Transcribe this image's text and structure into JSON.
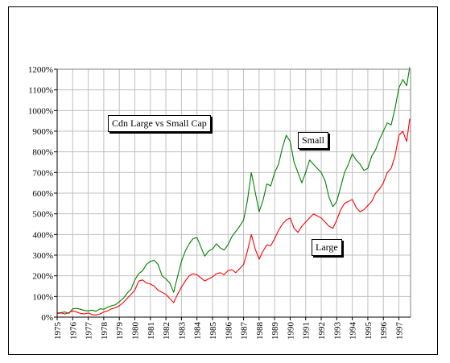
{
  "chart_data": {
    "type": "line",
    "title": "Cdn Large vs Small Cap",
    "xlabel": "",
    "ylabel": "",
    "xlim": [
      1975,
      1997.75
    ],
    "ylim": [
      0,
      1200
    ],
    "ytick_labels": [
      "0%",
      "100%",
      "200%",
      "300%",
      "400%",
      "500%",
      "600%",
      "700%",
      "800%",
      "900%",
      "1000%",
      "1100%",
      "1200%"
    ],
    "xtick_labels": [
      "1975",
      "1976",
      "1977",
      "1978",
      "1979",
      "1980",
      "1981",
      "1982",
      "1983",
      "1984",
      "1985",
      "1986",
      "1987",
      "1988",
      "1989",
      "1990",
      "1991",
      "1992",
      "1993",
      "1994",
      "1995",
      "1996",
      "1997"
    ],
    "grid": true,
    "legend": "none",
    "annotations": [
      {
        "text": "Small",
        "series": "Small"
      },
      {
        "text": "Large",
        "series": "Large"
      }
    ],
    "series": [
      {
        "name": "Small",
        "color": "#008000",
        "points": [
          [
            1975.0,
            20
          ],
          [
            1975.25,
            22
          ],
          [
            1975.5,
            25
          ],
          [
            1975.75,
            18
          ],
          [
            1976.0,
            40
          ],
          [
            1976.25,
            42
          ],
          [
            1976.5,
            38
          ],
          [
            1976.75,
            32
          ],
          [
            1977.0,
            30
          ],
          [
            1977.25,
            34
          ],
          [
            1977.5,
            28
          ],
          [
            1977.75,
            40
          ],
          [
            1978.0,
            38
          ],
          [
            1978.25,
            48
          ],
          [
            1978.5,
            55
          ],
          [
            1978.75,
            60
          ],
          [
            1979.0,
            75
          ],
          [
            1979.25,
            90
          ],
          [
            1979.5,
            115
          ],
          [
            1979.75,
            135
          ],
          [
            1980.0,
            180
          ],
          [
            1980.25,
            210
          ],
          [
            1980.5,
            225
          ],
          [
            1980.75,
            255
          ],
          [
            1981.0,
            270
          ],
          [
            1981.25,
            275
          ],
          [
            1981.5,
            255
          ],
          [
            1981.75,
            200
          ],
          [
            1982.0,
            185
          ],
          [
            1982.25,
            165
          ],
          [
            1982.5,
            120
          ],
          [
            1982.75,
            195
          ],
          [
            1983.0,
            270
          ],
          [
            1983.25,
            320
          ],
          [
            1983.5,
            355
          ],
          [
            1983.75,
            380
          ],
          [
            1984.0,
            385
          ],
          [
            1984.25,
            340
          ],
          [
            1984.5,
            295
          ],
          [
            1984.75,
            320
          ],
          [
            1985.0,
            330
          ],
          [
            1985.25,
            355
          ],
          [
            1985.5,
            335
          ],
          [
            1985.75,
            325
          ],
          [
            1986.0,
            350
          ],
          [
            1986.25,
            390
          ],
          [
            1986.5,
            415
          ],
          [
            1986.75,
            440
          ],
          [
            1987.0,
            470
          ],
          [
            1987.25,
            565
          ],
          [
            1987.5,
            700
          ],
          [
            1987.75,
            605
          ],
          [
            1988.0,
            510
          ],
          [
            1988.25,
            565
          ],
          [
            1988.5,
            645
          ],
          [
            1988.75,
            635
          ],
          [
            1989.0,
            700
          ],
          [
            1989.25,
            740
          ],
          [
            1989.5,
            820
          ],
          [
            1989.75,
            880
          ],
          [
            1990.0,
            850
          ],
          [
            1990.25,
            750
          ],
          [
            1990.5,
            700
          ],
          [
            1990.75,
            650
          ],
          [
            1991.0,
            700
          ],
          [
            1991.25,
            760
          ],
          [
            1991.5,
            740
          ],
          [
            1991.75,
            720
          ],
          [
            1992.0,
            700
          ],
          [
            1992.25,
            660
          ],
          [
            1992.5,
            580
          ],
          [
            1992.75,
            535
          ],
          [
            1993.0,
            560
          ],
          [
            1993.25,
            630
          ],
          [
            1993.5,
            700
          ],
          [
            1993.75,
            740
          ],
          [
            1994.0,
            790
          ],
          [
            1994.25,
            760
          ],
          [
            1994.5,
            740
          ],
          [
            1994.75,
            710
          ],
          [
            1995.0,
            720
          ],
          [
            1995.25,
            780
          ],
          [
            1995.5,
            810
          ],
          [
            1995.75,
            860
          ],
          [
            1996.0,
            900
          ],
          [
            1996.25,
            940
          ],
          [
            1996.5,
            930
          ],
          [
            1996.75,
            1010
          ],
          [
            1997.0,
            1110
          ],
          [
            1997.25,
            1150
          ],
          [
            1997.5,
            1120
          ],
          [
            1997.7,
            1210
          ]
        ]
      },
      {
        "name": "Large",
        "color": "#ff0000",
        "points": [
          [
            1975.0,
            18
          ],
          [
            1975.25,
            20
          ],
          [
            1975.5,
            15
          ],
          [
            1975.75,
            22
          ],
          [
            1976.0,
            30
          ],
          [
            1976.25,
            25
          ],
          [
            1976.5,
            18
          ],
          [
            1976.75,
            15
          ],
          [
            1977.0,
            20
          ],
          [
            1977.25,
            12
          ],
          [
            1977.5,
            10
          ],
          [
            1977.75,
            15
          ],
          [
            1978.0,
            25
          ],
          [
            1978.25,
            30
          ],
          [
            1978.5,
            40
          ],
          [
            1978.75,
            45
          ],
          [
            1979.0,
            55
          ],
          [
            1979.25,
            70
          ],
          [
            1979.5,
            90
          ],
          [
            1979.75,
            110
          ],
          [
            1980.0,
            130
          ],
          [
            1980.25,
            175
          ],
          [
            1980.5,
            180
          ],
          [
            1980.75,
            165
          ],
          [
            1981.0,
            160
          ],
          [
            1981.25,
            150
          ],
          [
            1981.5,
            130
          ],
          [
            1981.75,
            120
          ],
          [
            1982.0,
            110
          ],
          [
            1982.25,
            90
          ],
          [
            1982.5,
            70
          ],
          [
            1982.75,
            110
          ],
          [
            1983.0,
            145
          ],
          [
            1983.25,
            175
          ],
          [
            1983.5,
            200
          ],
          [
            1983.75,
            210
          ],
          [
            1984.0,
            205
          ],
          [
            1984.25,
            190
          ],
          [
            1984.5,
            175
          ],
          [
            1984.75,
            185
          ],
          [
            1985.0,
            195
          ],
          [
            1985.25,
            210
          ],
          [
            1985.5,
            215
          ],
          [
            1985.75,
            205
          ],
          [
            1986.0,
            225
          ],
          [
            1986.25,
            230
          ],
          [
            1986.5,
            215
          ],
          [
            1986.75,
            235
          ],
          [
            1987.0,
            255
          ],
          [
            1987.25,
            320
          ],
          [
            1987.5,
            400
          ],
          [
            1987.75,
            330
          ],
          [
            1988.0,
            280
          ],
          [
            1988.25,
            320
          ],
          [
            1988.5,
            350
          ],
          [
            1988.75,
            345
          ],
          [
            1989.0,
            380
          ],
          [
            1989.25,
            420
          ],
          [
            1989.5,
            450
          ],
          [
            1989.75,
            470
          ],
          [
            1990.0,
            480
          ],
          [
            1990.25,
            430
          ],
          [
            1990.5,
            410
          ],
          [
            1990.75,
            440
          ],
          [
            1991.0,
            460
          ],
          [
            1991.25,
            480
          ],
          [
            1991.5,
            500
          ],
          [
            1991.75,
            490
          ],
          [
            1992.0,
            480
          ],
          [
            1992.25,
            460
          ],
          [
            1992.5,
            440
          ],
          [
            1992.75,
            430
          ],
          [
            1993.0,
            470
          ],
          [
            1993.25,
            520
          ],
          [
            1993.5,
            550
          ],
          [
            1993.75,
            560
          ],
          [
            1994.0,
            570
          ],
          [
            1994.25,
            530
          ],
          [
            1994.5,
            510
          ],
          [
            1994.75,
            520
          ],
          [
            1995.0,
            540
          ],
          [
            1995.25,
            560
          ],
          [
            1995.5,
            600
          ],
          [
            1995.75,
            620
          ],
          [
            1996.0,
            650
          ],
          [
            1996.25,
            700
          ],
          [
            1996.5,
            720
          ],
          [
            1996.75,
            780
          ],
          [
            1997.0,
            880
          ],
          [
            1997.25,
            900
          ],
          [
            1997.5,
            850
          ],
          [
            1997.7,
            960
          ]
        ]
      }
    ]
  }
}
